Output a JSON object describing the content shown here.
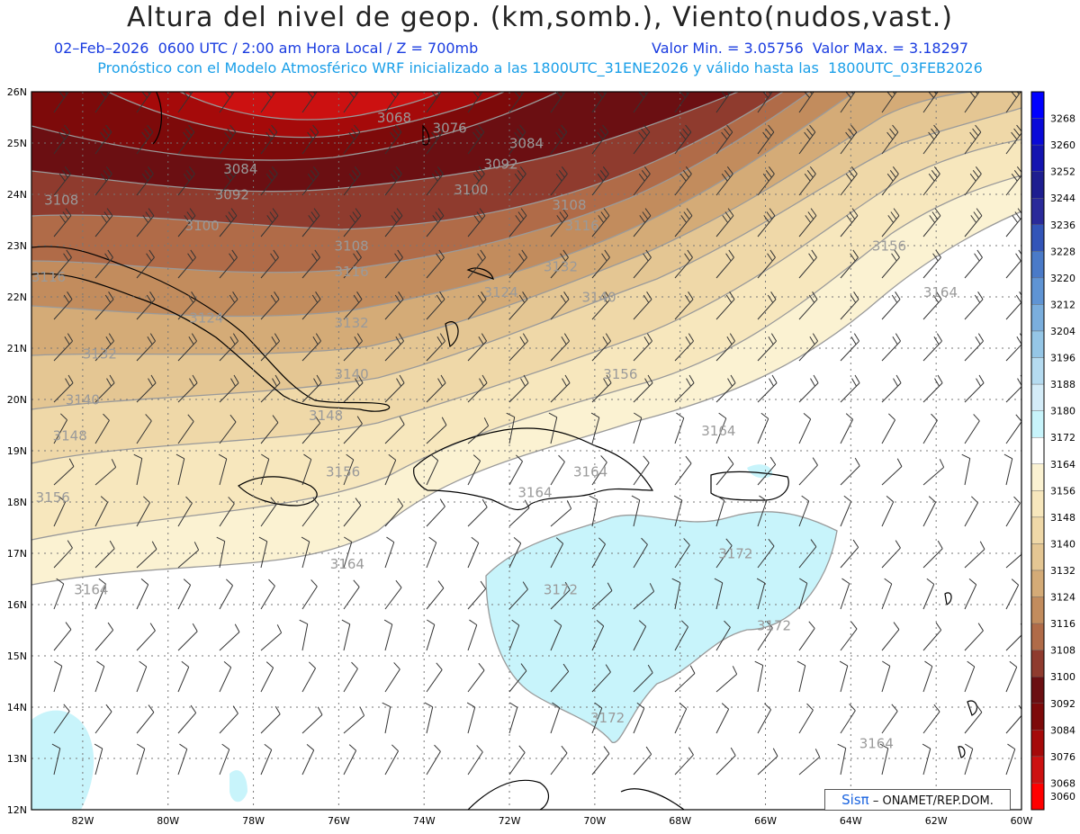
{
  "header": {
    "title": "Altura del nivel de geop. (km,somb.), Viento(nudos,vast.)",
    "line1": "02–Feb–2026  0600 UTC / 2:00 am Hora Local / Z = 700mb",
    "line1b": "Valor Min. = 3.05756  Valor Max. = 3.18297",
    "line2": "Pronóstico con el Modelo Atmosférico WRF inicializado a las 1800UTC_31ENE2026 y válido hasta las  1800UTC_03FEB2026"
  },
  "axes": {
    "lon_labels": [
      "82W",
      "80W",
      "78W",
      "76W",
      "74W",
      "72W",
      "70W",
      "68W",
      "66W",
      "64W",
      "62W",
      "60W"
    ],
    "lat_labels": [
      "26N",
      "25N",
      "24N",
      "23N",
      "22N",
      "21N",
      "20N",
      "19N",
      "18N",
      "17N",
      "16N",
      "15N",
      "14N",
      "13N",
      "12N"
    ]
  },
  "colorbar": {
    "levels": [
      "3268",
      "3260",
      "3252",
      "3244",
      "3236",
      "3228",
      "3220",
      "3212",
      "3204",
      "3196",
      "3188",
      "3180",
      "3172",
      "3164",
      "3156",
      "3148",
      "3140",
      "3132",
      "3124",
      "3116",
      "3108",
      "3100",
      "3092",
      "3084",
      "3076",
      "3068",
      "3060"
    ],
    "colors": [
      "#0000ff",
      "#0a0ad8",
      "#1414b0",
      "#1e1e90",
      "#2a2a9a",
      "#3355b8",
      "#4a7ac8",
      "#5f94d4",
      "#7aaedd",
      "#95c6e6",
      "#b5dbf0",
      "#d4ecf8",
      "#c8f4fb",
      "#ffffff",
      "#fbf2d2",
      "#f7e7bd",
      "#efd8a8",
      "#e4c693",
      "#d4ab77",
      "#c28c5d",
      "#b06b48",
      "#8f3b2e",
      "#6b0f12",
      "#7d0a0a",
      "#a50a0a",
      "#cc1111",
      "#ff0000"
    ]
  },
  "contour_labels": [
    {
      "text": "3068",
      "lon": -74.7,
      "lat": 25.4
    },
    {
      "text": "3076",
      "lon": -73.4,
      "lat": 25.2
    },
    {
      "text": "3084",
      "lon": -71.6,
      "lat": 24.9
    },
    {
      "text": "3084",
      "lon": -78.3,
      "lat": 24.4
    },
    {
      "text": "3092",
      "lon": -72.2,
      "lat": 24.5
    },
    {
      "text": "3092",
      "lon": -78.5,
      "lat": 23.9
    },
    {
      "text": "3100",
      "lon": -72.9,
      "lat": 24.0
    },
    {
      "text": "3100",
      "lon": -79.2,
      "lat": 23.3
    },
    {
      "text": "3108",
      "lon": -82.5,
      "lat": 23.8
    },
    {
      "text": "3108",
      "lon": -75.7,
      "lat": 22.9
    },
    {
      "text": "3108",
      "lon": -70.6,
      "lat": 23.7
    },
    {
      "text": "3116",
      "lon": -70.3,
      "lat": 23.3
    },
    {
      "text": "3116",
      "lon": -75.7,
      "lat": 22.4
    },
    {
      "text": "3116",
      "lon": -82.8,
      "lat": 22.3
    },
    {
      "text": "3124",
      "lon": -72.2,
      "lat": 22.0
    },
    {
      "text": "3124",
      "lon": -79.1,
      "lat": 21.5
    },
    {
      "text": "3132",
      "lon": -70.8,
      "lat": 22.5
    },
    {
      "text": "3132",
      "lon": -75.7,
      "lat": 21.4
    },
    {
      "text": "3132",
      "lon": -81.6,
      "lat": 20.8
    },
    {
      "text": "3140",
      "lon": -69.9,
      "lat": 21.9
    },
    {
      "text": "3140",
      "lon": -75.7,
      "lat": 20.4
    },
    {
      "text": "3140",
      "lon": -82.0,
      "lat": 19.9
    },
    {
      "text": "3148",
      "lon": -76.3,
      "lat": 19.6
    },
    {
      "text": "3148",
      "lon": -82.3,
      "lat": 19.2
    },
    {
      "text": "3156",
      "lon": -63.1,
      "lat": 22.9
    },
    {
      "text": "3156",
      "lon": -69.4,
      "lat": 20.4
    },
    {
      "text": "3156",
      "lon": -75.9,
      "lat": 18.5
    },
    {
      "text": "3156",
      "lon": -82.7,
      "lat": 18.0
    },
    {
      "text": "3164",
      "lon": -61.9,
      "lat": 22.0
    },
    {
      "text": "3164",
      "lon": -67.1,
      "lat": 19.3
    },
    {
      "text": "3164",
      "lon": -70.1,
      "lat": 18.5
    },
    {
      "text": "3164",
      "lon": -71.4,
      "lat": 18.1
    },
    {
      "text": "3164",
      "lon": -75.8,
      "lat": 16.7
    },
    {
      "text": "3164",
      "lon": -81.8,
      "lat": 16.2
    },
    {
      "text": "3164",
      "lon": -63.4,
      "lat": 13.2
    },
    {
      "text": "3172",
      "lon": -66.7,
      "lat": 16.9
    },
    {
      "text": "3172",
      "lon": -70.8,
      "lat": 16.2
    },
    {
      "text": "3172",
      "lon": -65.8,
      "lat": 15.5
    },
    {
      "text": "3172",
      "lon": -69.7,
      "lat": 13.7
    }
  ],
  "logo": {
    "sis": "Sisπ",
    "rest": "– ONAMET/REP.DOM."
  }
}
